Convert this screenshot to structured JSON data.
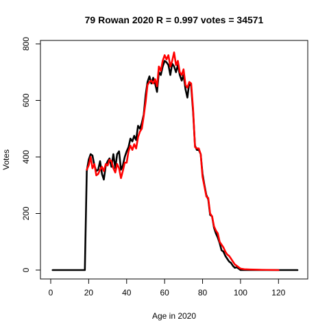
{
  "chart_data": {
    "type": "line",
    "title": "79 Rowan 2020 R = 0.997 votes = 34571",
    "xlabel": "Age in 2020",
    "ylabel": "Votes",
    "xlim": [
      0,
      130
    ],
    "ylim": [
      0,
      800
    ],
    "xticks": [
      0,
      20,
      40,
      60,
      80,
      100,
      120
    ],
    "yticks": [
      0,
      200,
      400,
      600,
      800
    ],
    "grid": false,
    "series": [
      {
        "color": "#000000",
        "x": [
          1,
          18,
          19,
          20,
          21,
          22,
          23,
          24,
          25,
          26,
          27,
          28,
          29,
          30,
          31,
          32,
          33,
          34,
          35,
          36,
          37,
          38,
          39,
          40,
          41,
          42,
          43,
          44,
          45,
          46,
          47,
          48,
          49,
          50,
          51,
          52,
          53,
          54,
          55,
          56,
          57,
          58,
          59,
          60,
          61,
          62,
          63,
          64,
          65,
          66,
          67,
          68,
          69,
          70,
          71,
          72,
          73,
          74,
          75,
          76,
          77,
          78,
          79,
          80,
          81,
          82,
          83,
          84,
          85,
          86,
          87,
          88,
          89,
          90,
          91,
          92,
          93,
          94,
          95,
          96,
          97,
          98,
          99,
          100,
          102,
          105,
          110,
          115,
          120,
          125,
          130
        ],
        "y": [
          0,
          0,
          350,
          390,
          410,
          405,
          370,
          350,
          355,
          385,
          340,
          320,
          370,
          385,
          395,
          365,
          410,
          360,
          410,
          420,
          355,
          370,
          400,
          420,
          435,
          465,
          455,
          475,
          460,
          510,
          500,
          520,
          550,
          620,
          665,
          685,
          660,
          680,
          660,
          630,
          700,
          690,
          720,
          740,
          735,
          725,
          690,
          730,
          720,
          700,
          725,
          690,
          670,
          690,
          640,
          610,
          665,
          650,
          560,
          440,
          425,
          425,
          410,
          340,
          300,
          265,
          250,
          195,
          190,
          150,
          130,
          115,
          95,
          70,
          65,
          50,
          40,
          30,
          25,
          15,
          8,
          10,
          5,
          0,
          0,
          0,
          0,
          0,
          0,
          0,
          0
        ]
      },
      {
        "color": "#ff0000",
        "x": [
          19,
          20,
          21,
          22,
          23,
          24,
          25,
          26,
          27,
          28,
          29,
          30,
          31,
          32,
          33,
          34,
          35,
          36,
          37,
          38,
          39,
          40,
          41,
          42,
          43,
          44,
          45,
          46,
          47,
          48,
          49,
          50,
          51,
          52,
          53,
          54,
          55,
          56,
          57,
          58,
          59,
          60,
          61,
          62,
          63,
          64,
          65,
          66,
          67,
          68,
          69,
          70,
          71,
          72,
          73,
          74,
          75,
          76,
          77,
          78,
          79,
          80,
          81,
          82,
          83,
          84,
          85,
          86,
          87,
          88,
          89,
          90,
          91,
          92,
          93,
          94,
          95,
          96,
          97,
          98,
          99,
          100,
          102,
          105,
          110,
          120
        ],
        "y": [
          355,
          370,
          400,
          360,
          375,
          335,
          340,
          355,
          365,
          350,
          375,
          370,
          390,
          385,
          360,
          345,
          375,
          360,
          325,
          350,
          380,
          380,
          420,
          440,
          425,
          445,
          430,
          470,
          490,
          500,
          545,
          595,
          655,
          665,
          670,
          660,
          675,
          650,
          720,
          705,
          740,
          760,
          745,
          760,
          720,
          740,
          770,
          725,
          740,
          700,
          690,
          710,
          655,
          645,
          665,
          660,
          570,
          435,
          430,
          430,
          410,
          330,
          295,
          260,
          255,
          200,
          190,
          155,
          140,
          130,
          100,
          90,
          80,
          65,
          55,
          50,
          40,
          30,
          20,
          15,
          10,
          5,
          3,
          2,
          1,
          0
        ]
      }
    ]
  }
}
